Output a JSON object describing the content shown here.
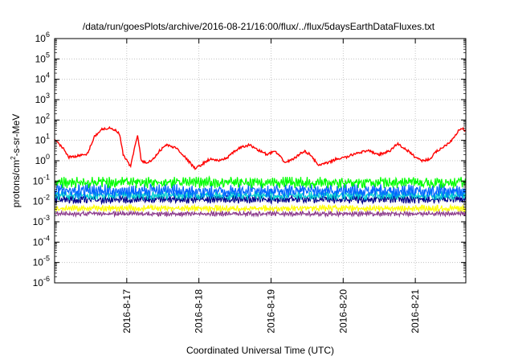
{
  "chart_data": {
    "type": "line",
    "title": "/data/run/goesPlots/archive/2016-08-21/16:00/flux/../flux/5daysEarthDataFluxes.txt",
    "xlabel": "Coordinated Universal Time (UTC)",
    "ylabel": {
      "base": "protons/cm",
      "sup": "2",
      "rest": "-s-sr-MeV"
    },
    "yscale": "log",
    "ylim_exp": [
      -6,
      6
    ],
    "y_tick_exponents": [
      -6,
      -5,
      -4,
      -3,
      -2,
      -1,
      0,
      1,
      2,
      3,
      4,
      5,
      6
    ],
    "y_tick_base": "10",
    "xlim_days": [
      16.0,
      21.7
    ],
    "x_ticks": [
      {
        "day": 17,
        "label": "2016-8-17"
      },
      {
        "day": 18,
        "label": "2016-8-18"
      },
      {
        "day": 19,
        "label": "2016-8-19"
      },
      {
        "day": 20,
        "label": "2016-8-20"
      },
      {
        "day": 21,
        "label": "2016-8-21"
      }
    ],
    "grid": true,
    "series": [
      {
        "color": "#ff0000",
        "x": [
          16.0,
          16.1,
          16.2,
          16.35,
          16.45,
          16.55,
          16.65,
          16.75,
          16.85,
          16.9,
          16.95,
          17.05,
          17.1,
          17.15,
          17.2,
          17.25,
          17.35,
          17.45,
          17.55,
          17.7,
          17.85,
          17.95,
          18.05,
          18.15,
          18.3,
          18.4,
          18.55,
          18.7,
          18.85,
          18.95,
          19.05,
          19.2,
          19.35,
          19.45,
          19.55,
          19.65,
          19.8,
          19.9,
          20.05,
          20.2,
          20.35,
          20.5,
          20.65,
          20.75,
          20.9,
          21.0,
          21.1,
          21.2,
          21.3,
          21.4,
          21.5,
          21.6,
          21.65,
          21.7
        ],
        "y": [
          10,
          5,
          1.5,
          1.8,
          2,
          15,
          35,
          40,
          30,
          20,
          2,
          0.5,
          3,
          20,
          1,
          0.8,
          1,
          3,
          6,
          4,
          1,
          0.4,
          0.7,
          1.2,
          1,
          1.5,
          4,
          6,
          3,
          2,
          3,
          0.8,
          1.5,
          3,
          2,
          0.6,
          0.8,
          1.2,
          1.5,
          2.5,
          3,
          2,
          3,
          7,
          3,
          1.5,
          1,
          1.2,
          3,
          5,
          10,
          30,
          40,
          25
        ]
      },
      {
        "color": "#00ff00",
        "base": 0.08,
        "band": [
          0.045,
          0.16
        ]
      },
      {
        "color": "#0066ff",
        "base": 0.035,
        "band": [
          0.015,
          0.07
        ]
      },
      {
        "color": "#00ced1",
        "base": 0.02,
        "band": [
          0.012,
          0.032
        ]
      },
      {
        "color": "#00008b",
        "base": 0.013,
        "band": [
          0.008,
          0.02
        ]
      },
      {
        "color": "#ffff00",
        "base": 0.0045,
        "band": [
          0.0032,
          0.0065
        ]
      },
      {
        "color": "#8b3a8b",
        "base": 0.0025,
        "band": [
          0.0019,
          0.0032
        ]
      }
    ]
  }
}
